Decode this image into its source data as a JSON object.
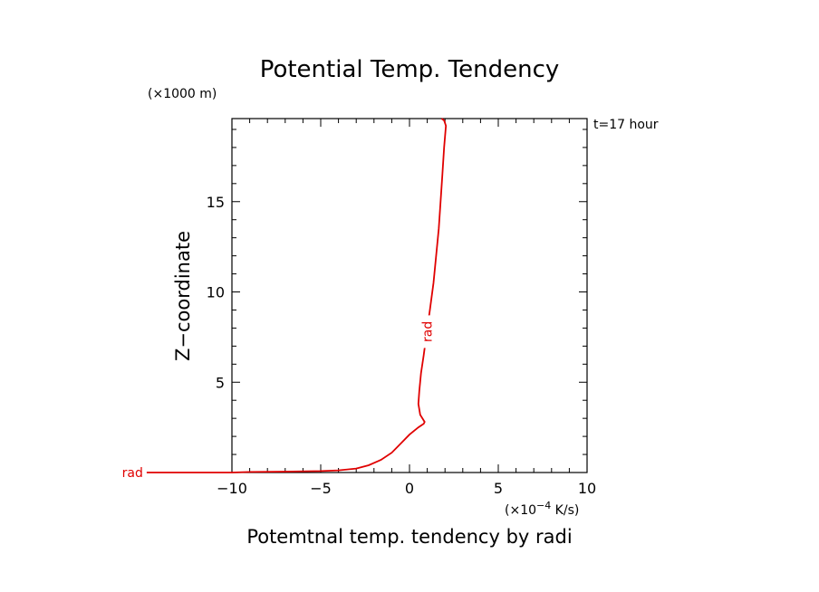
{
  "chart_data": {
    "type": "line",
    "title": "Potential Temp. Tendency",
    "xlabel": "Potemtnal temp. tendency by radi",
    "ylabel": "Z−coordinate",
    "x_unit": "(×10",
    "x_unit_exp": "−4",
    "x_unit_tail": " K/s)",
    "y_unit": "(×1000 m)",
    "annotation": "t=17 hour",
    "xlim": [
      -10,
      10
    ],
    "ylim": [
      0,
      19.6
    ],
    "xticks": [
      -10,
      -5,
      0,
      5,
      10
    ],
    "xtick_labels": [
      "−10",
      "−5",
      "0",
      "5",
      "10"
    ],
    "yticks": [
      5,
      10,
      15
    ],
    "ytick_labels": [
      "5",
      "10",
      "15"
    ],
    "grid": false,
    "series": [
      {
        "name": "rad",
        "color": "#e00000",
        "points": [
          [
            -14.8,
            0.0
          ],
          [
            -10,
            0.0
          ],
          [
            -9.0,
            0.03
          ],
          [
            -7.0,
            0.05
          ],
          [
            -5.0,
            0.08
          ],
          [
            -4.0,
            0.12
          ],
          [
            -3.0,
            0.22
          ],
          [
            -2.3,
            0.4
          ],
          [
            -1.6,
            0.7
          ],
          [
            -1.0,
            1.1
          ],
          [
            -0.5,
            1.6
          ],
          [
            0.0,
            2.1
          ],
          [
            0.5,
            2.5
          ],
          [
            0.8,
            2.7
          ],
          [
            0.85,
            2.8
          ],
          [
            0.6,
            3.2
          ],
          [
            0.5,
            3.8
          ],
          [
            0.55,
            4.5
          ],
          [
            0.65,
            5.5
          ],
          [
            0.8,
            6.5
          ],
          [
            0.95,
            7.6
          ],
          [
            1.15,
            9.0
          ],
          [
            1.35,
            10.5
          ],
          [
            1.5,
            12.0
          ],
          [
            1.65,
            13.5
          ],
          [
            1.75,
            15.0
          ],
          [
            1.85,
            16.5
          ],
          [
            1.95,
            18.0
          ],
          [
            2.05,
            19.2
          ],
          [
            1.95,
            19.5
          ],
          [
            1.8,
            19.6
          ]
        ],
        "inline_label_at": [
          1.0,
          7.8
        ]
      }
    ]
  }
}
